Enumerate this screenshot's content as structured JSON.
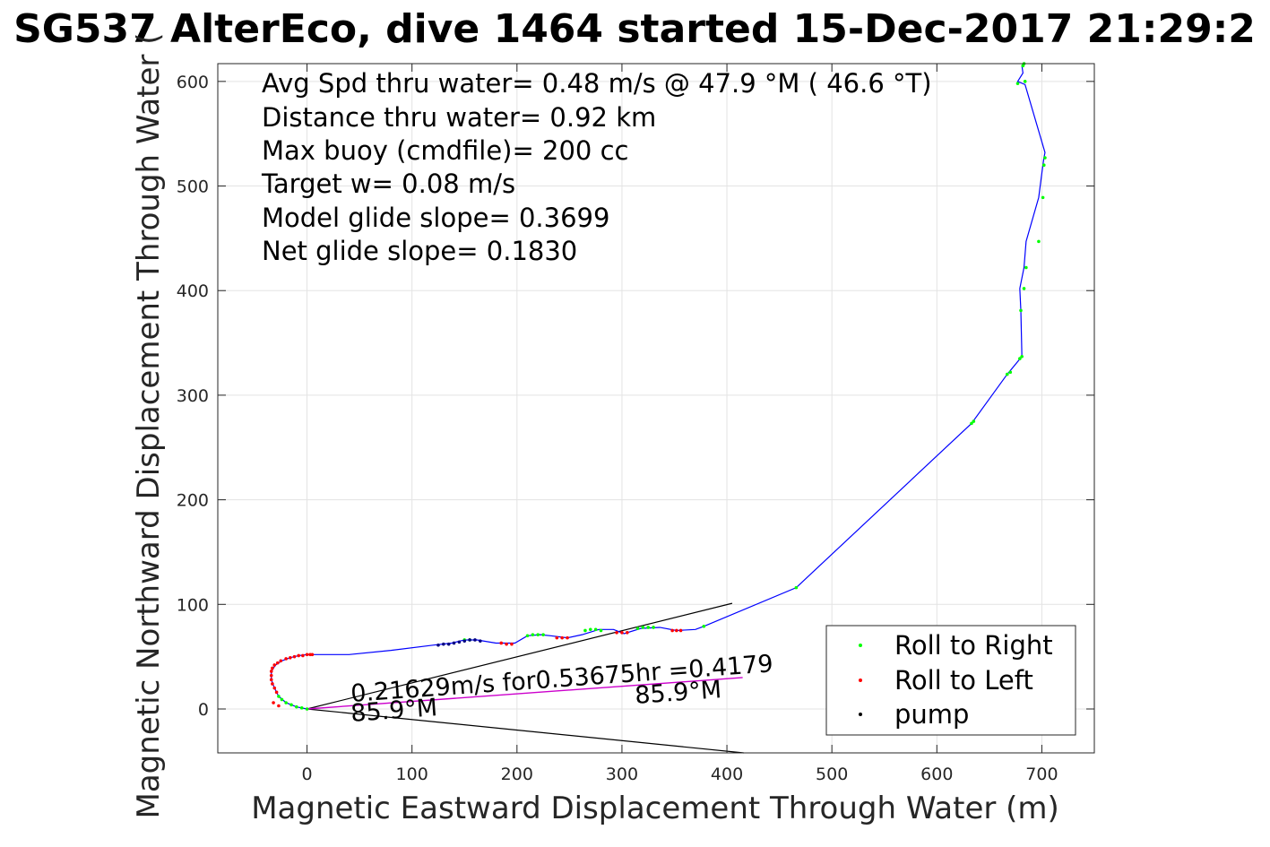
{
  "chart_data": {
    "type": "line",
    "title": "SG537 AlterEco, dive 1464 started 15-Dec-2017 21:29:2",
    "xlabel": "Magnetic Eastward Displacement Through Water (m)",
    "ylabel": "Magnetic Northward Displacement Through Water (",
    "xlim": [
      -85,
      750
    ],
    "ylim": [
      -42,
      617
    ],
    "xticks": [
      0,
      100,
      200,
      300,
      400,
      500,
      600,
      700
    ],
    "yticks": [
      0,
      100,
      200,
      300,
      400,
      500,
      600
    ],
    "grid": true,
    "stats": [
      "Avg Spd thru water=  0.48 m/s @  47.9 °M ( 46.6 °T)",
      "Distance thru water=  0.92 km",
      "Max buoy (cmdfile)= 200 cc",
      "Target w= 0.08 m/s",
      "Model glide slope= 0.3699",
      "Net glide slope= 0.1830"
    ],
    "annotations": {
      "current_text": "0.21629m/s for0.53675hr =0.4179",
      "heading_start": "85.9°M",
      "heading_end": "85.9°M"
    },
    "colors": {
      "track": "#0000ff",
      "roll_right": "#00ff00",
      "roll_left": "#ff0000",
      "pump": "#000080",
      "current": "#cc00cc",
      "wedge": "#000000"
    },
    "legend": {
      "placement": "bottom-right",
      "entries": [
        "Roll to Right",
        "Roll to Left",
        "pump"
      ]
    },
    "track": {
      "x": [
        0,
        -10,
        -20,
        -27,
        -31,
        -34,
        -34,
        -30,
        -24,
        -16,
        -8,
        0,
        8,
        40,
        80,
        120,
        138,
        150,
        162,
        180,
        198,
        210,
        222,
        232,
        248,
        262,
        278,
        292,
        302,
        318,
        336,
        352,
        370,
        378,
        466,
        633,
        667,
        681,
        680,
        679,
        683,
        685,
        697,
        701,
        702,
        703,
        684,
        677,
        682,
        681,
        683
      ],
      "y": [
        0,
        2,
        6,
        12,
        20,
        28,
        36,
        42,
        46,
        49,
        51,
        52,
        52,
        52,
        56,
        61,
        63,
        66,
        66,
        63,
        63,
        70,
        71,
        70,
        68,
        71,
        76,
        76,
        72,
        77,
        78,
        75,
        76,
        79,
        116,
        273,
        320,
        337,
        381,
        402,
        422,
        447,
        489,
        520,
        527,
        532,
        597,
        600,
        608,
        615,
        617
      ]
    },
    "roll_right": {
      "x": [
        0,
        -5,
        -10,
        -15,
        -20,
        -24,
        -27,
        150,
        155,
        210,
        215,
        220,
        225,
        265,
        270,
        275,
        280,
        315,
        320,
        325,
        330,
        378,
        466,
        633,
        635,
        667,
        670,
        679,
        681,
        680,
        683,
        685,
        697,
        701,
        702,
        703,
        684,
        677,
        682,
        683
      ],
      "y": [
        0,
        1,
        2,
        4,
        6,
        9,
        12,
        66,
        66,
        70,
        71,
        71,
        71,
        75,
        76,
        76,
        75,
        77,
        78,
        78,
        78,
        79,
        116,
        273,
        275,
        320,
        322,
        335,
        337,
        381,
        402,
        422,
        447,
        489,
        520,
        527,
        600,
        598,
        615,
        617
      ]
    },
    "roll_left": {
      "x": [
        -29,
        -31,
        -33,
        -34,
        -34,
        -34,
        -33,
        -31,
        -28,
        -25,
        -20,
        -16,
        -12,
        -8,
        -4,
        0,
        3,
        5,
        -32,
        -27,
        185,
        190,
        195,
        238,
        243,
        248,
        295,
        300,
        305,
        348,
        352,
        356
      ],
      "y": [
        16,
        20,
        24,
        28,
        32,
        36,
        39,
        42,
        44,
        46,
        48,
        49,
        50,
        51,
        51,
        52,
        52,
        52,
        6,
        3,
        63,
        62,
        62,
        68,
        68,
        68,
        73,
        73,
        73,
        75,
        75,
        75
      ],
      "extra_note": ""
    },
    "pump": {
      "x": [
        125,
        130,
        135,
        140,
        145,
        150,
        155,
        160,
        165
      ],
      "y": [
        61,
        62,
        62,
        63,
        64,
        65,
        66,
        66,
        65
      ]
    },
    "current_line": {
      "x": [
        0,
        415
      ],
      "y": [
        0,
        30
      ]
    },
    "wedge": [
      {
        "x": [
          0,
          405
        ],
        "y": [
          0,
          101
        ]
      },
      {
        "x": [
          0,
          416
        ],
        "y": [
          0,
          -42
        ]
      }
    ]
  }
}
